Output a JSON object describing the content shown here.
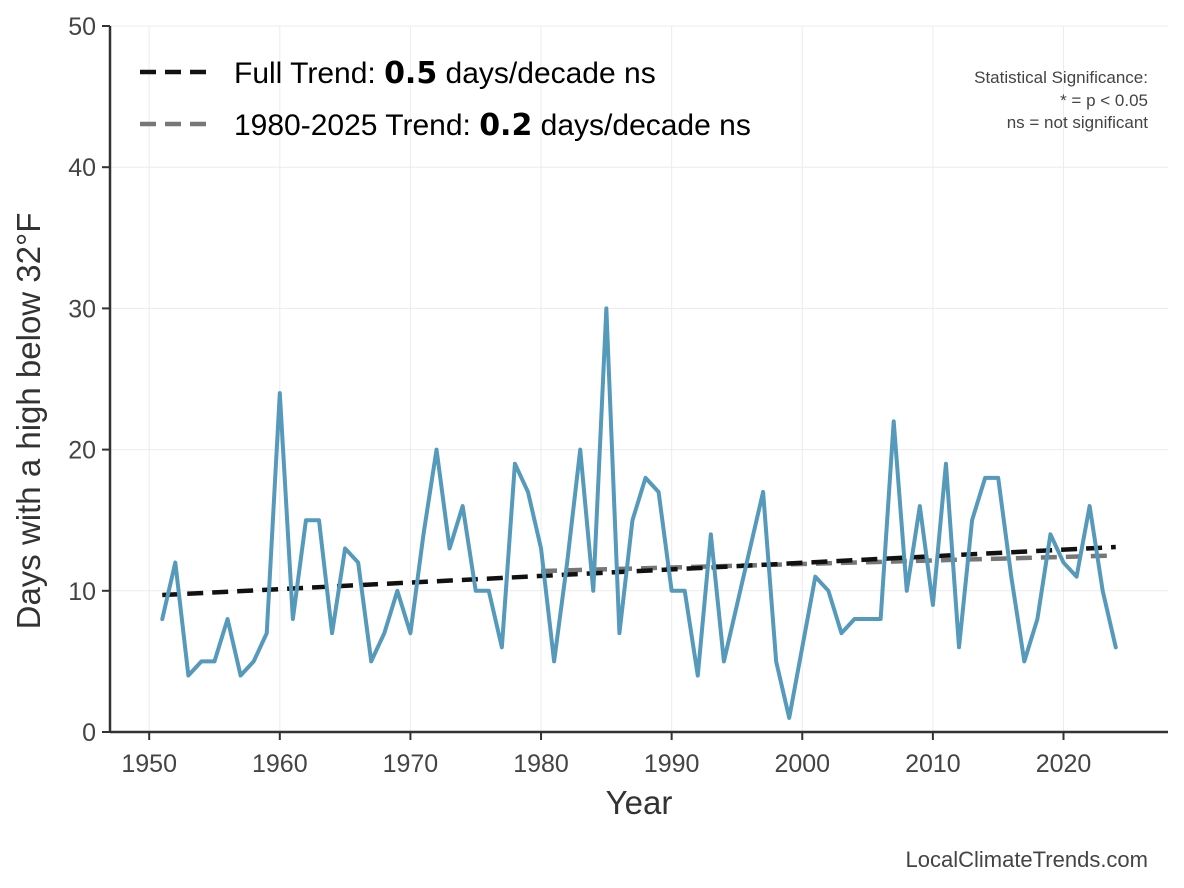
{
  "chart_data": {
    "type": "line",
    "title": "",
    "xlabel": "Year",
    "ylabel": "Days with a high below 32°F",
    "xlim": [
      1947,
      2028
    ],
    "ylim": [
      0,
      50
    ],
    "xticks": [
      1950,
      1960,
      1970,
      1980,
      1990,
      2000,
      2010,
      2020
    ],
    "yticks": [
      0,
      10,
      20,
      30,
      40,
      50
    ],
    "grid": true,
    "series": [
      {
        "name": "Days with a high below 32°F",
        "color": "#5599bb",
        "x": [
          1951,
          1952,
          1953,
          1954,
          1955,
          1956,
          1957,
          1958,
          1959,
          1960,
          1961,
          1962,
          1963,
          1964,
          1965,
          1966,
          1967,
          1968,
          1969,
          1970,
          1971,
          1972,
          1973,
          1974,
          1975,
          1976,
          1977,
          1978,
          1979,
          1980,
          1981,
          1982,
          1983,
          1984,
          1985,
          1986,
          1987,
          1988,
          1989,
          1990,
          1991,
          1992,
          1993,
          1994,
          1995,
          1996,
          1997,
          1998,
          1999,
          2000,
          2001,
          2002,
          2003,
          2004,
          2005,
          2006,
          2007,
          2008,
          2009,
          2010,
          2011,
          2012,
          2013,
          2014,
          2015,
          2016,
          2017,
          2018,
          2019,
          2020,
          2021,
          2022,
          2023,
          2024
        ],
        "values": [
          8,
          12,
          4,
          5,
          5,
          8,
          4,
          5,
          7,
          24,
          8,
          15,
          15,
          7,
          13,
          12,
          5,
          7,
          10,
          7,
          14,
          20,
          13,
          16,
          10,
          10,
          6,
          19,
          17,
          13,
          5,
          12,
          20,
          10,
          30,
          7,
          15,
          18,
          17,
          10,
          10,
          4,
          14,
          5,
          9,
          13,
          17,
          5,
          1,
          6,
          11,
          10,
          7,
          8,
          8,
          8,
          22,
          10,
          16,
          9,
          19,
          6,
          15,
          18,
          18,
          11,
          5,
          8,
          14,
          12,
          11,
          16,
          10,
          6
        ]
      }
    ],
    "trends": [
      {
        "name": "Full Trend",
        "color": "#111111",
        "x": [
          1951,
          2024
        ],
        "values": [
          9.7,
          13.1
        ],
        "legend_label": "Full Trend: ",
        "rate": "0.5",
        "legend_suffix": " days/decade ns"
      },
      {
        "name": "1980-2025 Trend",
        "color": "#777777",
        "x": [
          1980,
          2024
        ],
        "values": [
          11.4,
          12.5
        ],
        "legend_label": "1980-2025 Trend: ",
        "rate": "0.2",
        "legend_suffix": " days/decade ns"
      }
    ],
    "significance_note": {
      "title": "Statistical Significance:",
      "line1": "* = p < 0.05",
      "line2": "ns = not significant"
    },
    "credit": "LocalClimateTrends.com"
  }
}
